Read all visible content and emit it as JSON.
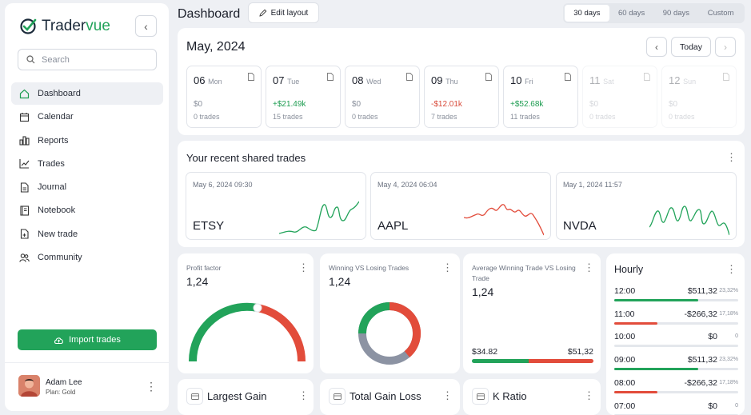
{
  "brand": {
    "name_part1": "Trader",
    "name_part2": "vue",
    "accent": "#22a35a"
  },
  "sidebar": {
    "search_placeholder": "Search",
    "items": [
      {
        "label": "Dashboard",
        "icon": "home-icon",
        "active": true
      },
      {
        "label": "Calendar",
        "icon": "calendar-icon"
      },
      {
        "label": "Reports",
        "icon": "reports-icon"
      },
      {
        "label": "Trades",
        "icon": "trades-icon"
      },
      {
        "label": "Journal",
        "icon": "journal-icon"
      },
      {
        "label": "Notebook",
        "icon": "notebook-icon"
      },
      {
        "label": "New trade",
        "icon": "new-trade-icon"
      },
      {
        "label": "Community",
        "icon": "community-icon"
      }
    ],
    "import_label": "Import trades",
    "user": {
      "name": "Adam Lee",
      "plan": "Plan: Gold"
    }
  },
  "header": {
    "title": "Dashboard",
    "edit_layout_label": "Edit layout",
    "ranges": [
      "30 days",
      "60 days",
      "90 days",
      "Custom"
    ],
    "active_range": "30 days"
  },
  "calendar": {
    "title": "May, 2024",
    "today_label": "Today",
    "days": [
      {
        "num": "06",
        "name": "Mon",
        "pnl": "$0",
        "trades": "0 trades",
        "state": "zero"
      },
      {
        "num": "07",
        "name": "Tue",
        "pnl": "+$21.49k",
        "trades": "15 trades",
        "state": "pos"
      },
      {
        "num": "08",
        "name": "Wed",
        "pnl": "$0",
        "trades": "0 trades",
        "state": "zero"
      },
      {
        "num": "09",
        "name": "Thu",
        "pnl": "-$12.01k",
        "trades": "7 trades",
        "state": "neg"
      },
      {
        "num": "10",
        "name": "Fri",
        "pnl": "+$52.68k",
        "trades": "11 trades",
        "state": "pos"
      },
      {
        "num": "11",
        "name": "Sat",
        "pnl": "$0",
        "trades": "0 trades",
        "state": "muted"
      },
      {
        "num": "12",
        "name": "Sun",
        "pnl": "$0",
        "trades": "0 trades",
        "state": "muted"
      }
    ]
  },
  "shared_trades": {
    "title": "Your recent shared trades",
    "trades": [
      {
        "date": "May 6, 2024 09:30",
        "symbol": "ETSY",
        "color": "#22a35a"
      },
      {
        "date": "May 4, 2024 06:04",
        "symbol": "AAPL",
        "color": "#e24c3b"
      },
      {
        "date": "May 1, 2024 11:57",
        "symbol": "NVDA",
        "color": "#22a35a"
      }
    ]
  },
  "metrics": {
    "profit_factor": {
      "label": "Profit factor",
      "value": "1,24"
    },
    "win_vs_loss": {
      "label": "Winning VS Losing Trades",
      "value": "1,24"
    },
    "avg_win_vs_loss": {
      "label": "Average Winning Trade VS Losing Trade",
      "value": "1,24",
      "win_amount": "$34.82",
      "loss_amount": "$51,32"
    }
  },
  "hourly": {
    "title": "Hourly",
    "rows": [
      {
        "time": "12:00",
        "value": "$511,32",
        "pct": "23,32%",
        "fill": 0.68,
        "color": "#22a35a"
      },
      {
        "time": "11:00",
        "value": "-$266,32",
        "pct": "17,18%",
        "fill": 0.35,
        "color": "#e24c3b"
      },
      {
        "time": "10:00",
        "value": "$0",
        "pct": "0",
        "fill": 0,
        "color": "#22a35a"
      },
      {
        "time": "09:00",
        "value": "$511,32",
        "pct": "23,32%",
        "fill": 0.68,
        "color": "#22a35a"
      },
      {
        "time": "08:00",
        "value": "-$266,32",
        "pct": "17,18%",
        "fill": 0.35,
        "color": "#e24c3b"
      },
      {
        "time": "07:00",
        "value": "$0",
        "pct": "0",
        "fill": 0,
        "color": "#22a35a"
      }
    ]
  },
  "bottom_cards": [
    {
      "title": "Largest Gain"
    },
    {
      "title": "Total Gain Loss"
    },
    {
      "title": "K Ratio"
    }
  ]
}
